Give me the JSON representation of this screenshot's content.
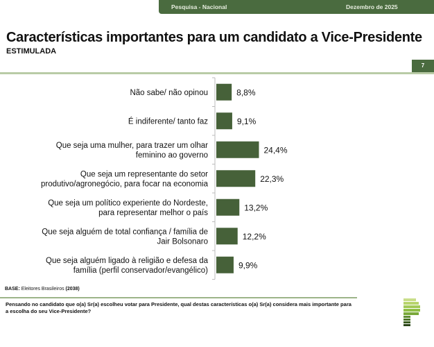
{
  "header": {
    "survey": "Pesquisa - Nacional",
    "date": "Dezembro de 2025"
  },
  "page_number": "7",
  "base": {
    "label": "BASE:",
    "text": " Eleitores Brasileiros ",
    "n": "(2038)"
  },
  "question": "Pensando no candidato que o(a) Sr(a) escolheu votar para Presidente, qual destas características o(a) Sr(a) considera mais importante para a escolha do seu Vice-Presidente?",
  "colors": {
    "bar": "#466139",
    "header": "#4a6b3f"
  },
  "chart_data": {
    "type": "bar",
    "orientation": "horizontal",
    "title": "Características importantes para um candidato a Vice-Presidente",
    "subtitle": "ESTIMULADA",
    "categories": [
      [
        "Não sabe/ não opinou"
      ],
      [
        "É indiferente/ tanto faz"
      ],
      [
        "Que seja uma mulher, para trazer um olhar",
        "feminino ao governo"
      ],
      [
        "Que seja um representante do setor",
        "produtivo/agronegócio, para focar na economia"
      ],
      [
        "Que seja um político experiente do Nordeste,",
        "para representar melhor o país"
      ],
      [
        "Que seja alguém de total confiança / família de",
        "Jair Bolsonaro"
      ],
      [
        "Que seja alguém ligado à religião e defesa da",
        "família (perfil conservador/evangélico)"
      ]
    ],
    "values": [
      8.8,
      9.1,
      24.4,
      22.3,
      13.2,
      12.2,
      9.9
    ],
    "labels": [
      "8,8%",
      "9,1%",
      "24,4%",
      "22,3%",
      "13,2%",
      "12,2%",
      "9,9%"
    ],
    "unit": "%"
  }
}
